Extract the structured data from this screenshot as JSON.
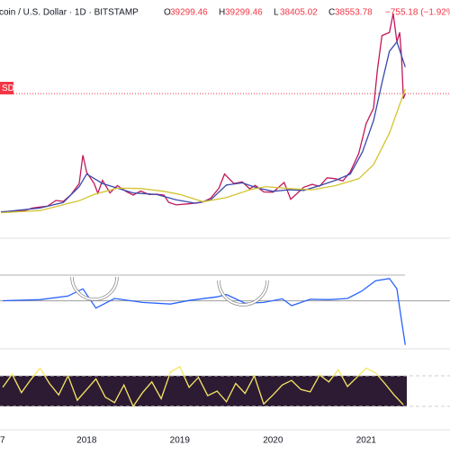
{
  "chart_data": {
    "type": "line",
    "header": {
      "symbol": "coin / U.S. Dollar · 1D · BITSTAMP",
      "ohlc": [
        {
          "label": "O",
          "value": "39299.46"
        },
        {
          "label": "H",
          "value": "39299.46"
        },
        {
          "label": "L",
          "value": "38405.02"
        },
        {
          "label": "C",
          "value": "38553.78"
        }
      ],
      "change": "−755.18 (−1.92%)"
    },
    "price_tag": "SD",
    "last_price": 38553.78,
    "xlim": [
      2017.07,
      2021.9
    ],
    "xticks": [
      {
        "value": 2017,
        "label": "7"
      },
      2018,
      2019,
      2020,
      2021
    ],
    "price": {
      "ylim": [
        -7400,
        68300
      ],
      "series": [
        {
          "color": "#c2185b",
          "x": [
            2017.08,
            2017.17,
            2017.25,
            2017.33,
            2017.42,
            2017.5,
            2017.58,
            2017.67,
            2017.75,
            2017.83,
            2017.92,
            2017.96,
            2018.0,
            2018.08,
            2018.12,
            2018.17,
            2018.25,
            2018.33,
            2018.42,
            2018.5,
            2018.58,
            2018.67,
            2018.75,
            2018.83,
            2018.88,
            2018.96,
            2019.08,
            2019.17,
            2019.25,
            2019.33,
            2019.42,
            2019.48,
            2019.58,
            2019.67,
            2019.75,
            2019.81,
            2019.9,
            2020.0,
            2020.12,
            2020.19,
            2020.25,
            2020.33,
            2020.42,
            2020.5,
            2020.58,
            2020.67,
            2020.75,
            2020.83,
            2020.92,
            2021.0,
            2021.08,
            2021.12,
            2021.17,
            2021.25,
            2021.29,
            2021.33,
            2021.36,
            2021.38,
            2021.4,
            2021.42
          ],
          "values": [
            1000,
            1150,
            1100,
            1350,
            2200,
            2500,
            2800,
            4600,
            4300,
            6400,
            10000,
            19000,
            13500,
            10000,
            6900,
            11000,
            7000,
            9300,
            7500,
            6300,
            7600,
            6500,
            6600,
            6300,
            4000,
            3200,
            3500,
            3800,
            4100,
            5300,
            8500,
            13000,
            10000,
            10500,
            8300,
            9400,
            7300,
            7200,
            10300,
            5000,
            6600,
            8800,
            9700,
            9100,
            11800,
            11500,
            10800,
            13700,
            19500,
            29000,
            34000,
            46000,
            57000,
            58000,
            64000,
            55000,
            58000,
            50000,
            37000,
            38553.78
          ]
        },
        {
          "color": "#3949ab",
          "x": [
            2017.08,
            2017.5,
            2017.75,
            2017.92,
            2018.0,
            2018.17,
            2018.33,
            2018.5,
            2018.75,
            2018.96,
            2019.17,
            2019.33,
            2019.5,
            2019.67,
            2019.83,
            2020.0,
            2020.17,
            2020.33,
            2020.5,
            2020.67,
            2020.83,
            2020.96,
            2021.08,
            2021.17,
            2021.25,
            2021.33,
            2021.42
          ],
          "values": [
            900,
            2200,
            4000,
            9000,
            13000,
            10000,
            8500,
            7000,
            6500,
            4800,
            3700,
            4800,
            9500,
            10200,
            8600,
            7500,
            8000,
            7800,
            9300,
            11000,
            13000,
            20000,
            30000,
            42000,
            52000,
            55000,
            47000
          ]
        },
        {
          "color": "#d4c431",
          "x": [
            2017.08,
            2017.5,
            2017.92,
            2018.08,
            2018.33,
            2018.58,
            2018.83,
            2019.0,
            2019.25,
            2019.5,
            2019.75,
            2019.92,
            2020.17,
            2020.42,
            2020.67,
            2020.92,
            2021.08,
            2021.25,
            2021.42
          ],
          "values": [
            700,
            1400,
            4500,
            6500,
            8500,
            8400,
            7500,
            6500,
            4200,
            5500,
            8000,
            9000,
            8400,
            8000,
            9300,
            11500,
            16000,
            26000,
            40000
          ]
        }
      ]
    },
    "macd": {
      "ylim": [
        -6000,
        3000
      ],
      "hlines": [
        0
      ],
      "series": [
        {
          "color": "#2962ff",
          "x": [
            2017.1,
            2017.5,
            2017.8,
            2017.96,
            2018.1,
            2018.3,
            2018.6,
            2018.9,
            2019.1,
            2019.4,
            2019.5,
            2019.7,
            2019.9,
            2020.1,
            2020.2,
            2020.4,
            2020.6,
            2020.8,
            2020.95,
            2021.1,
            2021.25,
            2021.33,
            2021.38,
            2021.42
          ],
          "values": [
            20,
            150,
            600,
            1500,
            -900,
            300,
            -200,
            -400,
            50,
            500,
            800,
            -300,
            -200,
            250,
            -600,
            200,
            150,
            300,
            1200,
            2500,
            2800,
            1500,
            -2500,
            -5500
          ]
        }
      ]
    },
    "rsi": {
      "ylim": [
        0,
        100
      ],
      "hlines": [
        30,
        70
      ],
      "series": [
        {
          "color": "#f5e663",
          "x": [
            2017.1,
            2017.2,
            2017.3,
            2017.4,
            2017.5,
            2017.6,
            2017.7,
            2017.8,
            2017.9,
            2018.0,
            2018.1,
            2018.2,
            2018.3,
            2018.4,
            2018.5,
            2018.6,
            2018.7,
            2018.8,
            2018.9,
            2019.0,
            2019.1,
            2019.2,
            2019.3,
            2019.4,
            2019.5,
            2019.6,
            2019.7,
            2019.8,
            2019.9,
            2020.0,
            2020.1,
            2020.2,
            2020.3,
            2020.4,
            2020.5,
            2020.6,
            2020.7,
            2020.8,
            2020.9,
            2021.0,
            2021.1,
            2021.2,
            2021.3,
            2021.4
          ],
          "values": [
            55,
            72,
            48,
            65,
            80,
            60,
            45,
            70,
            38,
            52,
            66,
            42,
            35,
            58,
            30,
            48,
            62,
            40,
            75,
            82,
            55,
            68,
            44,
            50,
            36,
            60,
            47,
            70,
            33,
            45,
            58,
            64,
            52,
            49,
            71,
            62,
            78,
            56,
            68,
            80,
            74,
            60,
            45,
            32
          ]
        }
      ]
    }
  }
}
